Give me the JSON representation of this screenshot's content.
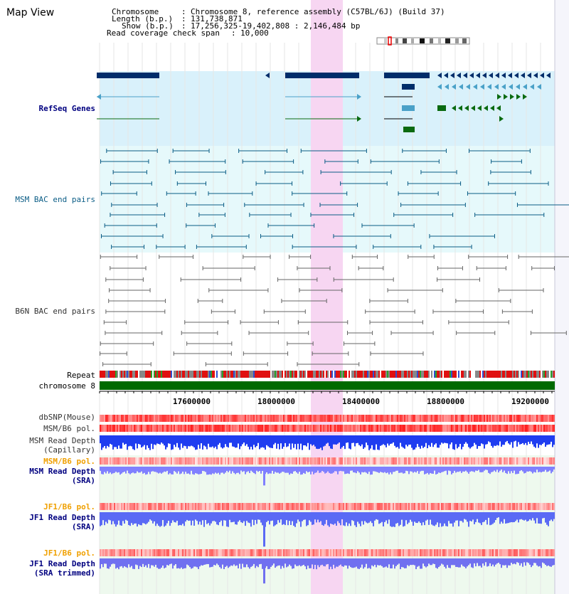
{
  "view": {
    "title": "Map View",
    "info": {
      "chromosome_key": "Chromosome",
      "chromosome_val": "Chromosome 8, reference assembly (C57BL/6J) (Build 37)",
      "length_key": "Length (b.p.)",
      "length_val": "131,738,871",
      "show_key": "Show (b.p.)",
      "show_val": "17,256,325-19,402,808 : 2,146,484 bp",
      "coverage_key": "Read coverage check span",
      "coverage_val": "10,000"
    }
  },
  "tracks": {
    "refseq": "RefSeq Genes",
    "msm_bac": "MSM BAC end pairs",
    "b6n_bac": "B6N BAC end pairs",
    "repeat": "Repeat",
    "chromosome": "chromosome 8",
    "dbsnp": "dbSNP(Mouse)",
    "msm_b6_pol": "MSM/B6 pol.",
    "msm_depth_cap_1": "MSM Read Depth",
    "msm_depth_cap_2": "(Capillary)",
    "msm_b6_pol_sra": "MSM/B6 pol.",
    "msm_depth_sra_1": "MSM Read Depth",
    "msm_depth_sra_2": "(SRA)",
    "jf1_b6_pol_1": "JF1/B6 pol.",
    "jf1_depth_sra_1": "JF1 Read Depth",
    "jf1_depth_sra_2": "(SRA)",
    "jf1_b6_pol_2": "JF1/B6 pol.",
    "jf1_depth_trim_1": "JF1 Read Depth",
    "jf1_depth_trim_2": "(SRA trimmed)"
  },
  "axis": {
    "ticks": [
      "17600000",
      "18000000",
      "18400000",
      "18800000",
      "19200000"
    ]
  },
  "colors": {
    "refseq_bg": "#d9f1fb",
    "msm_bg": "#e6f9fb",
    "highlight": "#f7d6f2",
    "refseq_navy": "#002d6a",
    "refseq_teal": "#4aa1c8",
    "refseq_green": "#0a6a10",
    "msm_line": "#0b5d86",
    "b6n_line": "#666666",
    "chromosome": "#006a00",
    "depth_blue": "#1f3df0",
    "depth_light": "#8080ff",
    "label_navy": "#000080",
    "label_orange": "#f0a000"
  }
}
